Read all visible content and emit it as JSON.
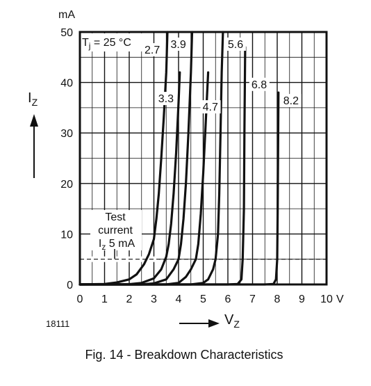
{
  "chart_data": {
    "type": "line",
    "title": "",
    "caption": "Fig. 14 - Breakdown Characteristics",
    "figure_id": "18111",
    "xlabel": {
      "main": "V",
      "sub": "Z"
    },
    "ylabel": {
      "main": "I",
      "sub": "Z"
    },
    "xunit": "V",
    "yunit": "mA",
    "xlim": [
      0,
      10
    ],
    "ylim": [
      0,
      50
    ],
    "xticks": [
      0,
      1,
      2,
      3,
      4,
      5,
      6,
      7,
      8,
      9,
      10
    ],
    "yticks": [
      0,
      10,
      20,
      30,
      40,
      50
    ],
    "grid": true,
    "legend_position": "none",
    "temperature_note": {
      "prefix": "T",
      "sub": "j",
      "text": " = 25 °C"
    },
    "test_current_note": {
      "line1": "Test",
      "line2": "current",
      "line3_prefix": "I",
      "line3_sub": "z",
      "line3_suffix": " 5 mA"
    },
    "reference_line": {
      "y": 5,
      "style": "dashed"
    },
    "series": [
      {
        "name": "2.7",
        "points": [
          [
            0,
            0
          ],
          [
            1,
            0.1
          ],
          [
            1.5,
            0.4
          ],
          [
            2,
            1
          ],
          [
            2.3,
            2
          ],
          [
            2.6,
            4
          ],
          [
            2.8,
            6
          ],
          [
            3,
            9
          ],
          [
            3.1,
            13
          ],
          [
            3.2,
            18
          ],
          [
            3.3,
            25
          ],
          [
            3.4,
            33
          ],
          [
            3.5,
            42
          ],
          [
            3.55,
            50
          ]
        ]
      },
      {
        "name": "3.3",
        "points": [
          [
            0,
            0
          ],
          [
            2,
            0.05
          ],
          [
            2.5,
            0.3
          ],
          [
            3,
            1.2
          ],
          [
            3.3,
            3
          ],
          [
            3.5,
            5.5
          ],
          [
            3.6,
            8
          ],
          [
            3.7,
            12
          ],
          [
            3.8,
            18
          ],
          [
            3.9,
            26
          ],
          [
            4,
            36
          ],
          [
            4.05,
            42
          ]
        ]
      },
      {
        "name": "3.9",
        "points": [
          [
            0,
            0
          ],
          [
            2.5,
            0
          ],
          [
            3,
            0.2
          ],
          [
            3.5,
            1
          ],
          [
            3.8,
            3
          ],
          [
            4,
            5
          ],
          [
            4.1,
            8
          ],
          [
            4.2,
            13
          ],
          [
            4.3,
            20
          ],
          [
            4.4,
            30
          ],
          [
            4.5,
            42
          ],
          [
            4.55,
            50
          ]
        ]
      },
      {
        "name": "4.7",
        "points": [
          [
            0,
            0
          ],
          [
            3.5,
            0
          ],
          [
            4,
            0.3
          ],
          [
            4.3,
            1.5
          ],
          [
            4.5,
            3
          ],
          [
            4.7,
            5
          ],
          [
            4.8,
            8
          ],
          [
            4.9,
            14
          ],
          [
            5,
            22
          ],
          [
            5.1,
            32
          ],
          [
            5.2,
            42
          ]
        ]
      },
      {
        "name": "5.6",
        "points": [
          [
            0,
            0
          ],
          [
            4.5,
            0
          ],
          [
            5,
            0.3
          ],
          [
            5.2,
            1
          ],
          [
            5.4,
            3
          ],
          [
            5.5,
            5
          ],
          [
            5.6,
            10
          ],
          [
            5.65,
            18
          ],
          [
            5.7,
            30
          ],
          [
            5.75,
            42
          ],
          [
            5.8,
            50
          ]
        ]
      },
      {
        "name": "6.8",
        "points": [
          [
            0,
            0
          ],
          [
            6,
            0
          ],
          [
            6.4,
            0.1
          ],
          [
            6.55,
            1
          ],
          [
            6.6,
            5
          ],
          [
            6.65,
            15
          ],
          [
            6.67,
            30
          ],
          [
            6.7,
            47
          ]
        ]
      },
      {
        "name": "8.2",
        "points": [
          [
            0,
            0
          ],
          [
            7.5,
            0
          ],
          [
            7.85,
            0.1
          ],
          [
            7.95,
            1
          ],
          [
            8,
            5
          ],
          [
            8.02,
            15
          ],
          [
            8.05,
            38
          ]
        ]
      }
    ]
  }
}
